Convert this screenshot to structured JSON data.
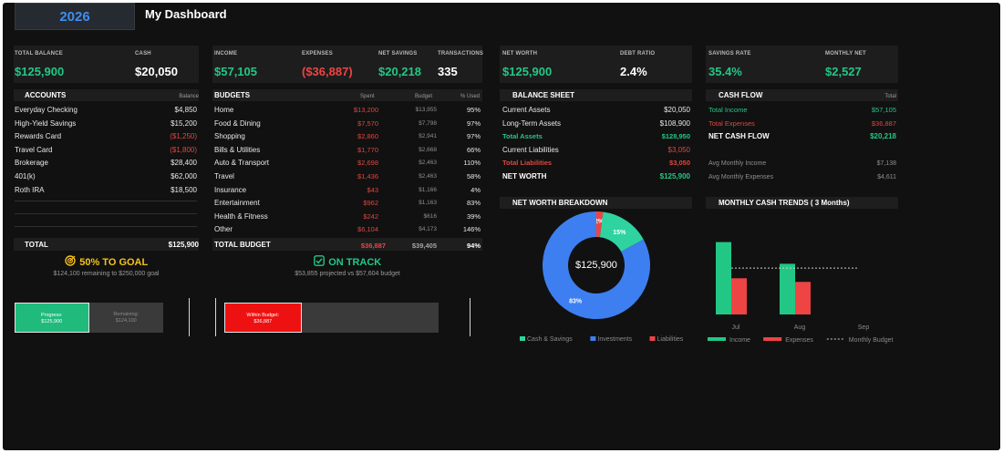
{
  "header": {
    "year": "2026",
    "title": "My Dashboard"
  },
  "kpis": {
    "total_balance": {
      "label": "TOTAL BALANCE",
      "value": "$125,900"
    },
    "cash": {
      "label": "CASH",
      "value": "$20,050"
    },
    "income": {
      "label": "INCOME",
      "value": "$57,105"
    },
    "expenses": {
      "label": "EXPENSES",
      "value": "($36,887)"
    },
    "net_savings": {
      "label": "NET SAVINGS",
      "value": "$20,218"
    },
    "transactions": {
      "label": "TRANSACTIONS",
      "value": "335"
    },
    "net_worth": {
      "label": "NET WORTH",
      "value": "$125,900"
    },
    "debt_ratio": {
      "label": "DEBT RATIO",
      "value": "2.4%"
    },
    "savings_rate": {
      "label": "SAVINGS RATE",
      "value": "35.4%"
    },
    "monthly_net": {
      "label": "MONTHLY NET",
      "value": "$2,527"
    }
  },
  "accounts": {
    "title": "ACCOUNTS",
    "col_balance": "Balance",
    "rows": [
      {
        "name": "Everyday Checking",
        "balance": "$4,850",
        "negative": false
      },
      {
        "name": "High-Yield Savings",
        "balance": "$15,200",
        "negative": false
      },
      {
        "name": "Rewards Card",
        "balance": "($1,250)",
        "negative": true
      },
      {
        "name": "Travel Card",
        "balance": "($1,800)",
        "negative": true
      },
      {
        "name": "Brokerage",
        "balance": "$28,400",
        "negative": false
      },
      {
        "name": "401(k)",
        "balance": "$62,000",
        "negative": false
      },
      {
        "name": "Roth IRA",
        "balance": "$18,500",
        "negative": false
      }
    ],
    "total_label": "TOTAL",
    "total_value": "$125,900"
  },
  "budgets": {
    "title": "BUDGETS",
    "col_spent": "Spent",
    "col_budget": "Budget",
    "col_used": "% Used",
    "rows": [
      {
        "name": "Home",
        "spent": "$13,200",
        "budget": "$13,955",
        "used": "95%"
      },
      {
        "name": "Food & Dining",
        "spent": "$7,570",
        "budget": "$7,798",
        "used": "97%"
      },
      {
        "name": "Shopping",
        "spent": "$2,860",
        "budget": "$2,941",
        "used": "97%"
      },
      {
        "name": "Bills & Utilities",
        "spent": "$1,770",
        "budget": "$2,668",
        "used": "66%"
      },
      {
        "name": "Auto & Transport",
        "spent": "$2,698",
        "budget": "$2,463",
        "used": "110%"
      },
      {
        "name": "Travel",
        "spent": "$1,436",
        "budget": "$2,463",
        "used": "58%"
      },
      {
        "name": "Insurance",
        "spent": "$43",
        "budget": "$1,166",
        "used": "4%"
      },
      {
        "name": "Entertainment",
        "spent": "$962",
        "budget": "$1,163",
        "used": "83%"
      },
      {
        "name": "Health & Fitness",
        "spent": "$242",
        "budget": "$616",
        "used": "39%"
      },
      {
        "name": "Other",
        "spent": "$6,104",
        "budget": "$4,173",
        "used": "146%"
      }
    ],
    "total_label": "TOTAL BUDGET",
    "total_spent": "$36,887",
    "total_budget": "$39,405",
    "total_used": "94%"
  },
  "balance_sheet": {
    "title": "BALANCE SHEET",
    "rows": [
      {
        "name": "Current Assets",
        "value": "$20,050",
        "style": "white"
      },
      {
        "name": "Long-Term Assets",
        "value": "$108,900",
        "style": "white"
      },
      {
        "name": "Total Assets",
        "value": "$128,950",
        "style": "green"
      },
      {
        "name": "Current Liabilities",
        "value": "$3,050",
        "style": "red-value"
      },
      {
        "name": "Total Liabilities",
        "value": "$3,050",
        "style": "red"
      },
      {
        "name": "NET WORTH",
        "value": "$125,900",
        "style": "net"
      }
    ]
  },
  "cash_flow": {
    "title": "CASH FLOW",
    "col_total": "Total",
    "rows": [
      {
        "name": "Total Income",
        "value": "$57,105",
        "style": "green"
      },
      {
        "name": "Total Expenses",
        "value": "$36,887",
        "style": "red"
      },
      {
        "name": "NET CASH FLOW",
        "value": "$20,218",
        "style": "net"
      }
    ],
    "avg_income_label": "Avg Monthly Income",
    "avg_income_value": "$7,138",
    "avg_expenses_label": "Avg Monthly Expenses",
    "avg_expenses_value": "$4,611"
  },
  "goal": {
    "title": "50% TO GOAL",
    "note": "$124,100 remaining to $250,000 goal",
    "progress_fraction": 0.5,
    "progress_label": "Progress:",
    "progress_value": "$125,900",
    "remaining_label": "Remaining:",
    "remaining_value": "$124,100"
  },
  "track": {
    "title": "ON TRACK",
    "note": "$53,855 projected vs $57,604 budget",
    "fraction": 0.36,
    "within_label": "Within Budget:",
    "within_value": "$36,887"
  },
  "colors": {
    "green": "#22c786",
    "red": "#ee4444",
    "blue": "#3d7ff0",
    "teal": "#2ed3a0",
    "gold": "#f5c21b",
    "background": "#111111"
  },
  "chart_data": [
    {
      "type": "pie",
      "title": "NET WORTH BREAKDOWN",
      "center_label": "$125,900",
      "labels": [
        "Cash & Savings",
        "Investments",
        "Liabilities"
      ],
      "values": [
        15,
        83,
        2
      ],
      "display": [
        "15%",
        "83%",
        "2%"
      ],
      "colors": [
        "#2ed3a0",
        "#3d7ff0",
        "#ee4444"
      ],
      "legend": "bottom"
    },
    {
      "type": "bar",
      "title": "MONTHLY CASH TRENDS ( 3 Months)",
      "categories": [
        "Jul",
        "Aug",
        "Sep"
      ],
      "series": [
        {
          "name": "Income",
          "values": [
            30000,
            21000,
            0
          ],
          "color": "#22c786"
        },
        {
          "name": "Expenses",
          "values": [
            15000,
            13500,
            0
          ],
          "color": "#ee4444"
        }
      ],
      "reference": {
        "name": "Monthly Budget",
        "value": 19200
      },
      "ylim": [
        0,
        34000
      ],
      "legend": "bottom"
    }
  ]
}
